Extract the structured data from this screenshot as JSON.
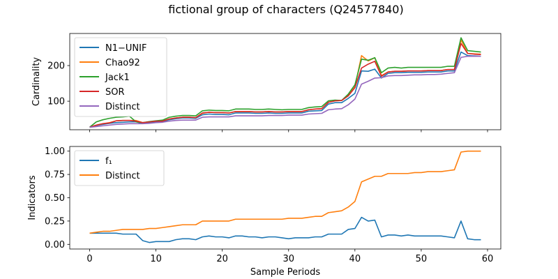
{
  "chart_data": [
    {
      "type": "line",
      "title": "fictional group of characters (Q24577840)",
      "xlabel": "",
      "ylabel": "Cardinality",
      "xlim": [
        -3,
        62
      ],
      "ylim": [
        20,
        290
      ],
      "yticks": [
        100,
        200
      ],
      "xticks": [
        0,
        10,
        20,
        30,
        40,
        50,
        60
      ],
      "show_xtick_labels": false,
      "legend_position": "upper-left",
      "series": [
        {
          "name": "N1−UNIF",
          "color": "#1f77b4",
          "values": [
            27,
            32,
            35,
            38,
            40,
            41,
            42,
            42,
            38,
            40,
            42,
            43,
            48,
            51,
            53,
            53,
            52,
            62,
            64,
            63,
            63,
            62,
            67,
            67,
            67,
            66,
            66,
            67,
            66,
            66,
            67,
            67,
            67,
            72,
            73,
            74,
            92,
            96,
            96,
            108,
            122,
            185,
            184,
            190,
            165,
            178,
            180,
            180,
            181,
            181,
            181,
            182,
            182,
            182,
            185,
            185,
            238,
            228,
            227,
            226
          ]
        },
        {
          "name": "Chao92",
          "color": "#ff7f0e",
          "values": [
            27,
            33,
            37,
            40,
            45,
            46,
            46,
            46,
            40,
            42,
            44,
            45,
            50,
            53,
            55,
            55,
            54,
            66,
            69,
            68,
            68,
            67,
            71,
            71,
            71,
            70,
            70,
            71,
            70,
            70,
            71,
            71,
            71,
            76,
            78,
            79,
            97,
            101,
            102,
            117,
            140,
            228,
            213,
            222,
            172,
            182,
            184,
            184,
            185,
            185,
            185,
            186,
            186,
            186,
            189,
            189,
            272,
            234,
            233,
            232
          ]
        },
        {
          "name": "Jack1",
          "color": "#2ca02c",
          "values": [
            27,
            42,
            48,
            52,
            55,
            56,
            58,
            42,
            40,
            43,
            45,
            47,
            55,
            58,
            60,
            60,
            59,
            73,
            75,
            74,
            74,
            73,
            78,
            78,
            78,
            77,
            77,
            78,
            77,
            76,
            77,
            77,
            77,
            82,
            84,
            85,
            101,
            103,
            102,
            120,
            146,
            218,
            215,
            222,
            180,
            193,
            195,
            193,
            195,
            195,
            195,
            195,
            195,
            195,
            198,
            198,
            278,
            242,
            240,
            238
          ]
        },
        {
          "name": "SOR",
          "color": "#d62728",
          "values": [
            27,
            33,
            37,
            39,
            45,
            46,
            46,
            44,
            40,
            42,
            44,
            44,
            50,
            53,
            55,
            55,
            54,
            67,
            69,
            68,
            68,
            67,
            71,
            71,
            71,
            70,
            70,
            71,
            70,
            70,
            71,
            71,
            71,
            76,
            78,
            79,
            97,
            101,
            102,
            115,
            138,
            193,
            204,
            212,
            170,
            182,
            184,
            184,
            185,
            185,
            185,
            186,
            186,
            186,
            189,
            189,
            262,
            234,
            232,
            231
          ]
        },
        {
          "name": "Distinct",
          "color": "#9467bd",
          "values": [
            27,
            29,
            31,
            33,
            35,
            36,
            37,
            37,
            37,
            38,
            40,
            41,
            44,
            46,
            47,
            47,
            47,
            55,
            56,
            56,
            56,
            56,
            59,
            59,
            59,
            59,
            59,
            60,
            60,
            60,
            61,
            61,
            61,
            64,
            65,
            66,
            76,
            78,
            79,
            90,
            106,
            148,
            156,
            165,
            166,
            171,
            172,
            172,
            173,
            174,
            174,
            175,
            175,
            176,
            178,
            180,
            223,
            226,
            226,
            226
          ]
        }
      ]
    },
    {
      "type": "line",
      "title": "",
      "xlabel": "Sample Periods",
      "ylabel": "Indicators",
      "xlim": [
        -3,
        62
      ],
      "ylim": [
        -0.05,
        1.05
      ],
      "yticks": [
        0.0,
        0.25,
        0.5,
        0.75,
        1.0
      ],
      "ytick_labels": [
        "0.00",
        "0.25",
        "0.50",
        "0.75",
        "1.00"
      ],
      "xticks": [
        0,
        10,
        20,
        30,
        40,
        50,
        60
      ],
      "xtick_labels": [
        "0",
        "10",
        "20",
        "30",
        "40",
        "50",
        "60"
      ],
      "show_xtick_labels": true,
      "legend_position": "upper-left",
      "series": [
        {
          "name": "f₁",
          "color": "#1f77b4",
          "values": [
            0.12,
            0.12,
            0.12,
            0.12,
            0.12,
            0.11,
            0.11,
            0.11,
            0.04,
            0.02,
            0.03,
            0.03,
            0.03,
            0.05,
            0.06,
            0.06,
            0.05,
            0.08,
            0.09,
            0.08,
            0.08,
            0.07,
            0.09,
            0.09,
            0.08,
            0.08,
            0.07,
            0.08,
            0.08,
            0.07,
            0.06,
            0.07,
            0.07,
            0.07,
            0.08,
            0.08,
            0.11,
            0.11,
            0.11,
            0.16,
            0.17,
            0.29,
            0.25,
            0.26,
            0.08,
            0.1,
            0.1,
            0.09,
            0.1,
            0.09,
            0.09,
            0.09,
            0.09,
            0.09,
            0.08,
            0.07,
            0.25,
            0.06,
            0.05,
            0.05
          ]
        },
        {
          "name": "Distinct",
          "color": "#ff7f0e",
          "values": [
            0.12,
            0.13,
            0.14,
            0.14,
            0.15,
            0.16,
            0.16,
            0.16,
            0.16,
            0.17,
            0.17,
            0.18,
            0.19,
            0.2,
            0.21,
            0.21,
            0.21,
            0.25,
            0.25,
            0.25,
            0.25,
            0.25,
            0.27,
            0.27,
            0.27,
            0.27,
            0.27,
            0.27,
            0.27,
            0.27,
            0.28,
            0.28,
            0.28,
            0.29,
            0.3,
            0.3,
            0.34,
            0.35,
            0.36,
            0.4,
            0.46,
            0.67,
            0.7,
            0.73,
            0.73,
            0.76,
            0.76,
            0.76,
            0.76,
            0.77,
            0.77,
            0.78,
            0.78,
            0.78,
            0.79,
            0.8,
            0.99,
            1.0,
            1.0,
            1.0
          ]
        }
      ]
    }
  ]
}
